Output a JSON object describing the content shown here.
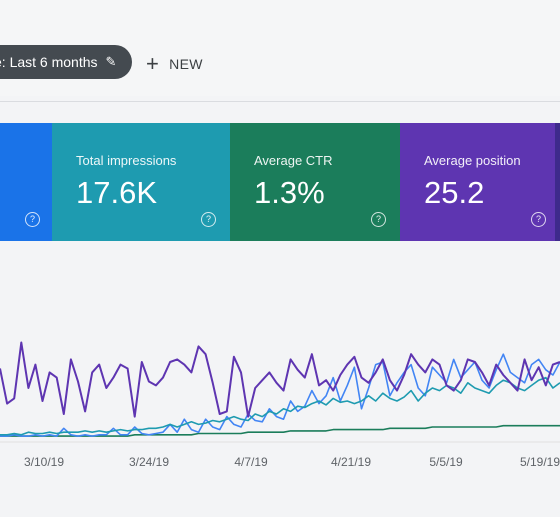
{
  "header": {
    "date_filter_label": "e: Last 6 months",
    "new_label": "NEW"
  },
  "cards": [
    {
      "label": "",
      "value": "",
      "color": "#1a73e8"
    },
    {
      "label": "Total impressions",
      "value": "17.6K",
      "color": "#1e9bb0"
    },
    {
      "label": "Average CTR",
      "value": "1.3%",
      "color": "#1b7d5b"
    },
    {
      "label": "Average position",
      "value": "25.2",
      "color": "#5e35b1"
    }
  ],
  "chart_data": {
    "type": "line",
    "xlabel": "",
    "ylabel": "",
    "x_tick_labels": [
      "3/10/19",
      "3/24/19",
      "4/7/19",
      "4/21/19",
      "5/5/19",
      "5/19/19"
    ],
    "x": [
      1,
      2,
      3,
      4,
      5,
      6,
      7,
      8,
      9,
      10,
      11,
      12,
      13,
      14,
      15,
      16,
      17,
      18,
      19,
      20,
      21,
      22,
      23,
      24,
      25,
      26,
      27,
      28,
      29,
      30,
      31,
      32,
      33,
      34,
      35,
      36,
      37,
      38,
      39,
      40,
      41,
      42,
      43,
      44,
      45,
      46,
      47,
      48,
      49,
      50,
      51,
      52,
      53,
      54,
      55,
      56,
      57,
      58,
      59,
      60,
      61,
      62,
      63,
      64,
      65,
      66,
      67,
      68,
      69,
      70,
      71,
      72,
      73,
      74,
      75,
      76,
      77,
      78,
      79,
      80
    ],
    "ylim": [
      0,
      100
    ],
    "grid": false,
    "series": [
      {
        "color": "#5e35b1",
        "values": [
          55,
          28,
          32,
          75,
          40,
          58,
          30,
          52,
          48,
          20,
          62,
          45,
          22,
          52,
          58,
          40,
          48,
          58,
          55,
          18,
          60,
          45,
          42,
          48,
          60,
          62,
          58,
          52,
          72,
          66,
          44,
          20,
          22,
          64,
          52,
          18,
          40,
          46,
          52,
          44,
          38,
          62,
          54,
          48,
          66,
          42,
          46,
          38,
          50,
          58,
          64,
          48,
          44,
          52,
          62,
          46,
          38,
          50,
          66,
          58,
          52,
          62,
          58,
          42,
          38,
          46,
          62,
          60,
          52,
          42,
          58,
          50,
          44,
          38,
          62,
          46,
          56,
          42,
          58,
          60
        ]
      },
      {
        "color": "#1e9bb0",
        "values": [
          4,
          4,
          5,
          4,
          6,
          5,
          5,
          6,
          5,
          6,
          6,
          6,
          7,
          6,
          7,
          6,
          7,
          8,
          7,
          8,
          8,
          9,
          9,
          10,
          12,
          10,
          12,
          14,
          12,
          13,
          15,
          14,
          16,
          18,
          16,
          15,
          20,
          18,
          22,
          20,
          24,
          22,
          26,
          25,
          28,
          30,
          27,
          32,
          29,
          30,
          28,
          30,
          34,
          30,
          36,
          32,
          30,
          33,
          38,
          30,
          36,
          40,
          38,
          42,
          40,
          36,
          44,
          40,
          38,
          36,
          42,
          46,
          44,
          40,
          38,
          42,
          46,
          48,
          40,
          44
        ]
      },
      {
        "color": "#4285f4",
        "values": [
          3,
          3,
          4,
          3,
          3,
          4,
          3,
          4,
          3,
          9,
          4,
          3,
          4,
          3,
          4,
          4,
          9,
          4,
          4,
          10,
          5,
          4,
          5,
          6,
          12,
          6,
          16,
          8,
          6,
          16,
          10,
          8,
          18,
          12,
          10,
          20,
          15,
          14,
          24,
          18,
          16,
          30,
          22,
          26,
          38,
          28,
          34,
          48,
          30,
          42,
          56,
          24,
          40,
          58,
          60,
          34,
          44,
          52,
          58,
          40,
          34,
          56,
          50,
          44,
          62,
          48,
          54,
          60,
          46,
          40,
          54,
          66,
          52,
          48,
          44,
          58,
          62,
          54,
          50,
          60
        ]
      },
      {
        "color": "#1b7d5b",
        "values": [
          3,
          3,
          3,
          3,
          3,
          3,
          3,
          3,
          3,
          3,
          3,
          3,
          3,
          3,
          3,
          3,
          3,
          3,
          3,
          4,
          4,
          4,
          4,
          4,
          4,
          4,
          4,
          4,
          5,
          5,
          5,
          5,
          5,
          5,
          5,
          6,
          6,
          6,
          6,
          6,
          6,
          7,
          7,
          7,
          7,
          7,
          7,
          8,
          8,
          8,
          8,
          8,
          8,
          8,
          8,
          9,
          9,
          9,
          9,
          9,
          9,
          10,
          10,
          10,
          10,
          10,
          10,
          10,
          10,
          10,
          10,
          11,
          11,
          11,
          11,
          11,
          11,
          11,
          11,
          11
        ]
      }
    ]
  }
}
